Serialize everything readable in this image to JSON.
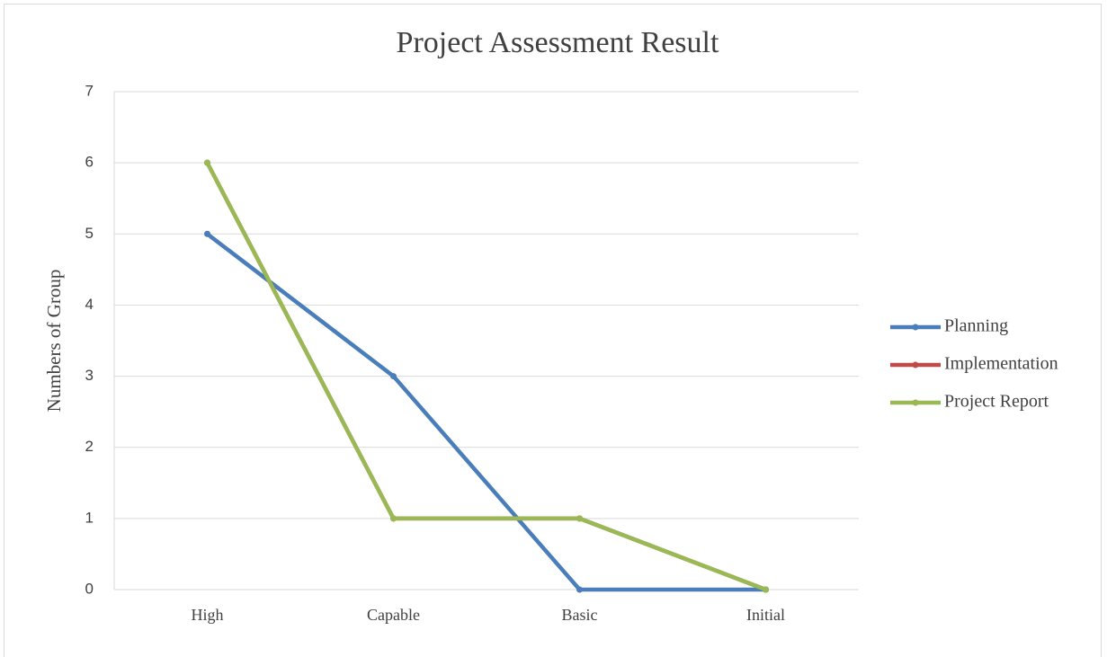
{
  "chart_data": {
    "type": "line",
    "title": "Project Assessment Result",
    "y_label": "Numbers of Group",
    "categories": [
      "High",
      "Capable",
      "Basic",
      "Initial"
    ],
    "series": [
      {
        "name": "Planning",
        "color": "#4a7ebb",
        "values": [
          5,
          3,
          0,
          0
        ]
      },
      {
        "name": "Implementation",
        "color": "#be4b48",
        "values": [
          6,
          1,
          1,
          0
        ]
      },
      {
        "name": "Project Report",
        "color": "#98b954",
        "values": [
          6,
          1,
          1,
          0
        ]
      }
    ],
    "ylim": [
      0,
      7
    ],
    "yticks": [
      0,
      1,
      2,
      3,
      4,
      5,
      6,
      7
    ],
    "grid": true,
    "legend": "right"
  }
}
